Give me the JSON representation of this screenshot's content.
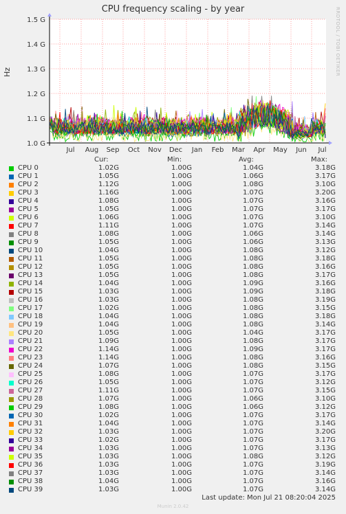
{
  "chart_data": {
    "type": "line",
    "title": "CPU frequency scaling - by year",
    "ylabel": "Hz",
    "ylim": [
      1.0,
      1.5
    ],
    "y_ticks": [
      "1.0 G",
      "1.1 G",
      "1.2 G",
      "1.3 G",
      "1.4 G",
      "1.5 G"
    ],
    "x_ticks": [
      "Jul",
      "Aug",
      "Sep",
      "Oct",
      "Nov",
      "Dec",
      "Jan",
      "Feb",
      "Mar",
      "Apr",
      "May",
      "Jun",
      "Jul"
    ],
    "grid": true,
    "legend_columns": [
      "Cur:",
      "Min:",
      "Avg:",
      "Max:"
    ],
    "series": [
      {
        "name": "CPU 0",
        "color": "#00cc00",
        "cur": "1.02G",
        "min": "1.00G",
        "avg": "1.04G",
        "max": "3.18G"
      },
      {
        "name": "CPU 1",
        "color": "#0066b3",
        "cur": "1.05G",
        "min": "1.00G",
        "avg": "1.06G",
        "max": "3.17G"
      },
      {
        "name": "CPU 2",
        "color": "#ff8000",
        "cur": "1.12G",
        "min": "1.00G",
        "avg": "1.08G",
        "max": "3.10G"
      },
      {
        "name": "CPU 3",
        "color": "#ffcc00",
        "cur": "1.16G",
        "min": "1.00G",
        "avg": "1.07G",
        "max": "3.20G"
      },
      {
        "name": "CPU 4",
        "color": "#330099",
        "cur": "1.08G",
        "min": "1.00G",
        "avg": "1.07G",
        "max": "3.16G"
      },
      {
        "name": "CPU 5",
        "color": "#990099",
        "cur": "1.05G",
        "min": "1.00G",
        "avg": "1.07G",
        "max": "3.17G"
      },
      {
        "name": "CPU 6",
        "color": "#ccff00",
        "cur": "1.06G",
        "min": "1.00G",
        "avg": "1.07G",
        "max": "3.10G"
      },
      {
        "name": "CPU 7",
        "color": "#ff0000",
        "cur": "1.11G",
        "min": "1.00G",
        "avg": "1.07G",
        "max": "3.14G"
      },
      {
        "name": "CPU 8",
        "color": "#808080",
        "cur": "1.08G",
        "min": "1.00G",
        "avg": "1.06G",
        "max": "3.14G"
      },
      {
        "name": "CPU 9",
        "color": "#008f00",
        "cur": "1.05G",
        "min": "1.00G",
        "avg": "1.06G",
        "max": "3.13G"
      },
      {
        "name": "CPU 10",
        "color": "#00487d",
        "cur": "1.04G",
        "min": "1.00G",
        "avg": "1.08G",
        "max": "3.12G"
      },
      {
        "name": "CPU 11",
        "color": "#b35a00",
        "cur": "1.05G",
        "min": "1.00G",
        "avg": "1.08G",
        "max": "3.18G"
      },
      {
        "name": "CPU 12",
        "color": "#b38f00",
        "cur": "1.05G",
        "min": "1.00G",
        "avg": "1.08G",
        "max": "3.16G"
      },
      {
        "name": "CPU 13",
        "color": "#6b006b",
        "cur": "1.05G",
        "min": "1.00G",
        "avg": "1.08G",
        "max": "3.17G"
      },
      {
        "name": "CPU 14",
        "color": "#8fb300",
        "cur": "1.04G",
        "min": "1.00G",
        "avg": "1.09G",
        "max": "3.16G"
      },
      {
        "name": "CPU 15",
        "color": "#b30000",
        "cur": "1.03G",
        "min": "1.00G",
        "avg": "1.09G",
        "max": "3.18G"
      },
      {
        "name": "CPU 16",
        "color": "#bebebe",
        "cur": "1.03G",
        "min": "1.00G",
        "avg": "1.08G",
        "max": "3.19G"
      },
      {
        "name": "CPU 17",
        "color": "#80ff80",
        "cur": "1.02G",
        "min": "1.00G",
        "avg": "1.08G",
        "max": "3.15G"
      },
      {
        "name": "CPU 18",
        "color": "#80c9ff",
        "cur": "1.04G",
        "min": "1.00G",
        "avg": "1.08G",
        "max": "3.18G"
      },
      {
        "name": "CPU 19",
        "color": "#ffc080",
        "cur": "1.04G",
        "min": "1.00G",
        "avg": "1.08G",
        "max": "3.14G"
      },
      {
        "name": "CPU 20",
        "color": "#ffe680",
        "cur": "1.05G",
        "min": "1.00G",
        "avg": "1.04G",
        "max": "3.17G"
      },
      {
        "name": "CPU 21",
        "color": "#aa80ff",
        "cur": "1.09G",
        "min": "1.00G",
        "avg": "1.08G",
        "max": "3.17G"
      },
      {
        "name": "CPU 22",
        "color": "#ee00cc",
        "cur": "1.14G",
        "min": "1.00G",
        "avg": "1.09G",
        "max": "3.17G"
      },
      {
        "name": "CPU 23",
        "color": "#ff8080",
        "cur": "1.14G",
        "min": "1.00G",
        "avg": "1.08G",
        "max": "3.16G"
      },
      {
        "name": "CPU 24",
        "color": "#666600",
        "cur": "1.07G",
        "min": "1.00G",
        "avg": "1.08G",
        "max": "3.15G"
      },
      {
        "name": "CPU 25",
        "color": "#ffbfff",
        "cur": "1.08G",
        "min": "1.00G",
        "avg": "1.07G",
        "max": "3.17G"
      },
      {
        "name": "CPU 26",
        "color": "#00ffcc",
        "cur": "1.05G",
        "min": "1.00G",
        "avg": "1.07G",
        "max": "3.12G"
      },
      {
        "name": "CPU 27",
        "color": "#cc6699",
        "cur": "1.11G",
        "min": "1.00G",
        "avg": "1.07G",
        "max": "3.15G"
      },
      {
        "name": "CPU 28",
        "color": "#999900",
        "cur": "1.07G",
        "min": "1.00G",
        "avg": "1.06G",
        "max": "3.10G"
      },
      {
        "name": "CPU 29",
        "color": "#00cc00",
        "cur": "1.08G",
        "min": "1.00G",
        "avg": "1.06G",
        "max": "3.12G"
      },
      {
        "name": "CPU 30",
        "color": "#0066b3",
        "cur": "1.02G",
        "min": "1.00G",
        "avg": "1.07G",
        "max": "3.17G"
      },
      {
        "name": "CPU 31",
        "color": "#ff8000",
        "cur": "1.04G",
        "min": "1.00G",
        "avg": "1.07G",
        "max": "3.14G"
      },
      {
        "name": "CPU 32",
        "color": "#ffcc00",
        "cur": "1.03G",
        "min": "1.00G",
        "avg": "1.07G",
        "max": "3.20G"
      },
      {
        "name": "CPU 33",
        "color": "#330099",
        "cur": "1.02G",
        "min": "1.00G",
        "avg": "1.07G",
        "max": "3.17G"
      },
      {
        "name": "CPU 34",
        "color": "#990099",
        "cur": "1.03G",
        "min": "1.00G",
        "avg": "1.07G",
        "max": "3.13G"
      },
      {
        "name": "CPU 35",
        "color": "#ccff00",
        "cur": "1.03G",
        "min": "1.00G",
        "avg": "1.08G",
        "max": "3.12G"
      },
      {
        "name": "CPU 36",
        "color": "#ff0000",
        "cur": "1.03G",
        "min": "1.00G",
        "avg": "1.07G",
        "max": "3.19G"
      },
      {
        "name": "CPU 37",
        "color": "#808080",
        "cur": "1.03G",
        "min": "1.00G",
        "avg": "1.07G",
        "max": "3.14G"
      },
      {
        "name": "CPU 38",
        "color": "#008f00",
        "cur": "1.04G",
        "min": "1.00G",
        "avg": "1.07G",
        "max": "3.16G"
      },
      {
        "name": "CPU 39",
        "color": "#00487d",
        "cur": "1.03G",
        "min": "1.00G",
        "avg": "1.07G",
        "max": "3.14G"
      }
    ]
  },
  "watermark": "RRDTOOL / TOBI OETIKER",
  "last_update": "Last update: Mon Jul 21 08:20:04 2025",
  "version": "Munin 2.0.42"
}
